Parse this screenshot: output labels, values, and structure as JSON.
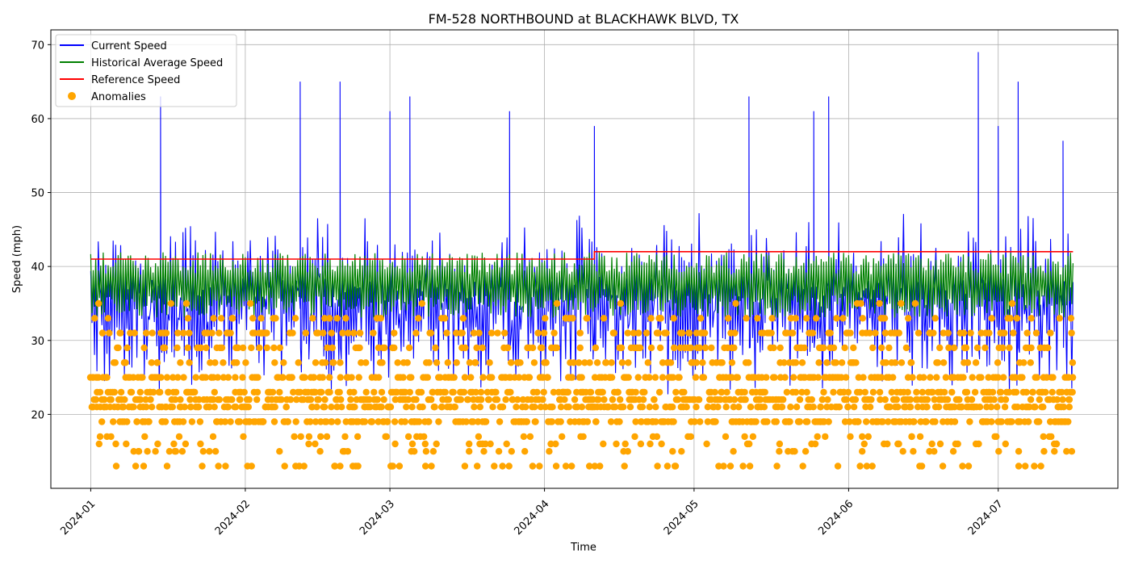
{
  "chart_data": {
    "type": "line",
    "title": "FM-528 NORTHBOUND at BLACKHAWK BLVD, TX",
    "xlabel": "Time",
    "ylabel": "Speed (mph)",
    "x_range": [
      "2023-12-24",
      "2024-07-25"
    ],
    "ylim": [
      10,
      72
    ],
    "x_ticks": [
      "2024-01",
      "2024-02",
      "2024-03",
      "2024-04",
      "2024-05",
      "2024-06",
      "2024-07"
    ],
    "y_ticks": [
      20,
      30,
      40,
      50,
      60,
      70
    ],
    "grid": true,
    "legend_position": "top-left",
    "data_start": "2024-01-01",
    "data_end": "2024-07-16",
    "series": [
      {
        "name": "Current Speed",
        "color": "#0000ff",
        "kind": "line",
        "typical_min": 19,
        "typical_max": 51,
        "overall_min": 13,
        "overall_max": 69,
        "spikes": [
          {
            "x": "2024-01-15",
            "y": 63
          },
          {
            "x": "2024-02-12",
            "y": 65
          },
          {
            "x": "2024-02-20",
            "y": 65
          },
          {
            "x": "2024-03-01",
            "y": 61
          },
          {
            "x": "2024-03-05",
            "y": 63
          },
          {
            "x": "2024-03-25",
            "y": 61
          },
          {
            "x": "2024-04-11",
            "y": 59
          },
          {
            "x": "2024-05-12",
            "y": 63
          },
          {
            "x": "2024-05-25",
            "y": 61
          },
          {
            "x": "2024-05-28",
            "y": 63
          },
          {
            "x": "2024-06-27",
            "y": 69
          },
          {
            "x": "2024-07-01",
            "y": 59
          },
          {
            "x": "2024-07-05",
            "y": 65
          },
          {
            "x": "2024-07-14",
            "y": 57
          }
        ]
      },
      {
        "name": "Historical Average Speed",
        "color": "#008000",
        "kind": "line",
        "typical_min": 30,
        "typical_max": 45,
        "overall_min": 20,
        "overall_max": 47
      },
      {
        "name": "Reference Speed",
        "color": "#ff0000",
        "kind": "step",
        "x": [
          "2024-01-01",
          "2024-04-11",
          "2024-04-11",
          "2024-07-16"
        ],
        "y": [
          41,
          41,
          42,
          42
        ]
      },
      {
        "name": "Anomalies",
        "color": "#ffa500",
        "kind": "scatter",
        "y_levels": [
          13,
          15,
          16,
          17,
          19,
          21,
          22,
          23,
          25,
          27,
          29,
          31,
          33,
          35
        ],
        "overall_min": 13,
        "overall_max": 35
      }
    ]
  }
}
